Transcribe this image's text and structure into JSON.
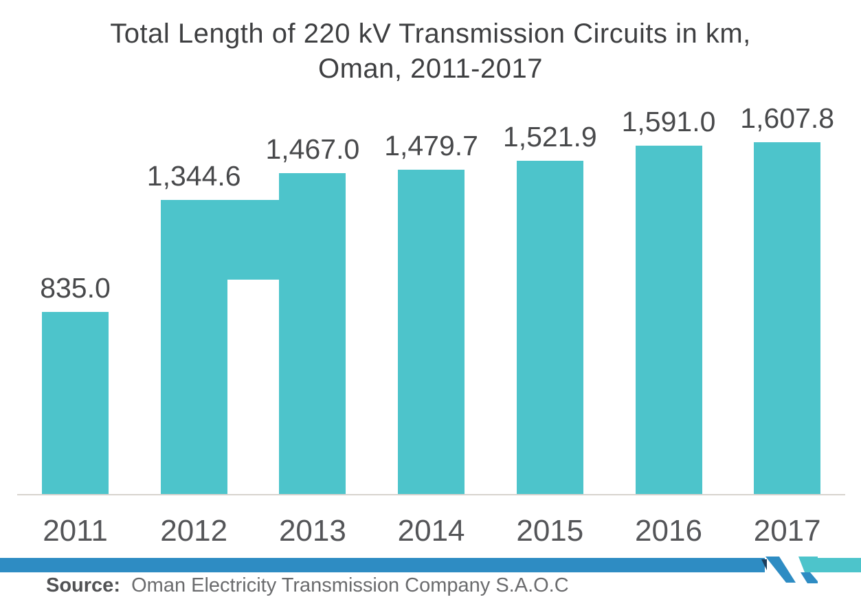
{
  "title": {
    "line1": "Total Length of 220 kV Transmission Circuits in km,",
    "line2": "Oman, 2011-2017"
  },
  "chart_data": {
    "type": "bar",
    "title": "Total Length of 220 kV Transmission Circuits in km, Oman, 2011-2017",
    "categories": [
      "2011",
      "2012",
      "2013",
      "2014",
      "2015",
      "2016",
      "2017"
    ],
    "values": [
      835.0,
      1344.6,
      1467.0,
      1479.7,
      1521.9,
      1591.0,
      1607.8
    ],
    "value_labels": [
      "835.0",
      "1,344.6",
      "1,467.0",
      "1,479.7",
      "1,521.9",
      "1,591.0",
      "1,607.8"
    ],
    "series_name": "Total length of 220 kV transmission circuits (km)",
    "xlabel": "",
    "ylabel": "",
    "ylim": [
      0,
      1800
    ],
    "gridlines": false,
    "legend": false,
    "y_axis_visible": false,
    "data_labels_position": "above-bar",
    "bar_color": "#4dc4cb",
    "annotations": [
      {
        "type": "render-artifact",
        "description": "Extra teal rectangle fills the gap between the 2012 and 2013 bars, aligned with the 2012 bar top and ending partway down (not reaching the baseline)",
        "between_categories": [
          "2012",
          "2013"
        ]
      }
    ]
  },
  "footer": {
    "source_label": "Source:",
    "source_text": "Oman Electricity Transmission Company S.A.O.C",
    "logo": "Mordor Intelligence mark"
  },
  "colors": {
    "background": "#ffffff",
    "bar-teal": "#4dc4cb",
    "title-text": "#3e3f41",
    "value-text": "#48494b",
    "year-text": "#545558",
    "axis-line": "#d7d3ce",
    "stripe-blue": "#2e8cc3",
    "logo-navy": "#1d3e5c",
    "source-label-text": "#515254",
    "source-text": "#6a6b6d"
  }
}
